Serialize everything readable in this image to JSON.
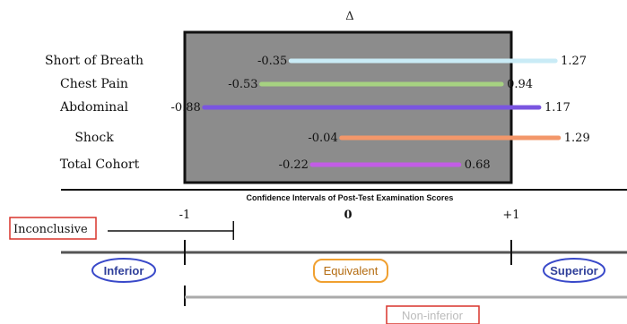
{
  "chart_data": {
    "type": "interval",
    "title": "Δ",
    "xlabel": "Confidence Intervals of Post-Test Examination Scores",
    "xlim": [
      -1.0,
      1.55
    ],
    "zero_reference": 0,
    "x_ticks": [
      {
        "value": -1,
        "label": "-1"
      },
      {
        "value": 0,
        "label": "0"
      },
      {
        "value": 1,
        "label": "+1"
      }
    ],
    "series": [
      {
        "label": "Short of Breath",
        "lower": -0.35,
        "upper": 1.27,
        "lower_label": "-0.35",
        "upper_label": "1.27",
        "color": "#c9ebf6"
      },
      {
        "label": "Chest Pain",
        "lower": -0.53,
        "upper": 0.94,
        "lower_label": "-0.53",
        "upper_label": "0.94",
        "color": "#a6d281"
      },
      {
        "label": "Abdominal",
        "lower": -0.88,
        "upper": 1.17,
        "lower_label": "-0.88",
        "upper_label": "1.17",
        "color": "#7a55e0"
      },
      {
        "label": "Shock",
        "lower": -0.04,
        "upper": 1.29,
        "lower_label": "-0.04",
        "upper_label": "1.29",
        "color": "#f3976a"
      },
      {
        "label": "Total Cohort",
        "lower": -0.22,
        "upper": 0.68,
        "lower_label": "-0.22",
        "upper_label": "0.68",
        "color": "#c25de6"
      }
    ],
    "shaded_region": {
      "from": -1,
      "to": 1,
      "color": "#8c8c8c"
    },
    "legend": {
      "inconclusive": {
        "label": "Inconclusive",
        "from": -1.5,
        "to": -0.68
      },
      "inferior": {
        "label": "Inferior"
      },
      "equivalent": {
        "label": "Equivalent"
      },
      "superior": {
        "label": "Superior"
      },
      "non_inferior": {
        "label": "Non-inferior",
        "from": -1
      }
    },
    "colors": {
      "inconclusive_box": "#d9342b",
      "non_inferior_box": "#d9342b",
      "inferior_ellipse": "#3949c9",
      "equivalent_box": "#f0a030",
      "superior_ellipse": "#3949c9"
    }
  }
}
